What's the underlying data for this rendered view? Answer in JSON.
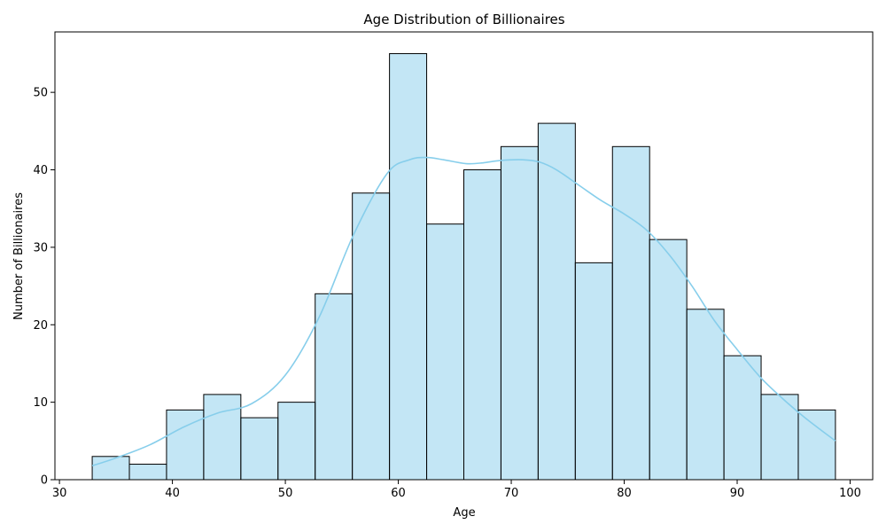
{
  "chart_data": {
    "type": "bar",
    "title": "Age Distribution of Billionaires",
    "xlabel": "Age",
    "ylabel": "Number of Billionaires",
    "bin_edges": [
      32.9,
      36.19,
      39.48,
      42.77,
      46.06,
      49.35,
      52.64,
      55.93,
      59.22,
      62.51,
      65.8,
      69.09,
      72.38,
      75.67,
      78.96,
      82.25,
      85.54,
      88.83,
      92.12,
      95.41,
      98.7
    ],
    "values": [
      3,
      2,
      9,
      11,
      8,
      10,
      24,
      37,
      55,
      33,
      40,
      43,
      46,
      28,
      43,
      31,
      22,
      16,
      11,
      9
    ],
    "kde": {
      "x": [
        32.9,
        35,
        38,
        41,
        44,
        47,
        50,
        53,
        56,
        59,
        61,
        62.5,
        64,
        66,
        67.5,
        69,
        71,
        72.5,
        74,
        76,
        78,
        80,
        82,
        84,
        86,
        88,
        90,
        92,
        94,
        96,
        98.7
      ],
      "y": [
        1.8,
        2.8,
        4.5,
        6.8,
        8.6,
        9.8,
        13.5,
        21.0,
        31.5,
        39.5,
        41.3,
        41.6,
        41.3,
        40.8,
        40.9,
        41.2,
        41.3,
        41.0,
        40.0,
        38.0,
        36.0,
        34.3,
        32.2,
        29.0,
        25.0,
        20.5,
        16.8,
        13.3,
        10.5,
        8.0,
        5.0
      ]
    },
    "xlim": [
      29.6,
      102.0
    ],
    "ylim": [
      0,
      57.8
    ],
    "xticks": [
      30,
      40,
      50,
      60,
      70,
      80,
      90,
      100
    ],
    "yticks": [
      0,
      10,
      20,
      30,
      40,
      50
    ],
    "colors": {
      "bar_fill": "#87ceeb",
      "bar_fill_opacity": 0.5,
      "bar_edge": "#000000",
      "kde_line": "#87ceeb"
    },
    "grid": false
  }
}
